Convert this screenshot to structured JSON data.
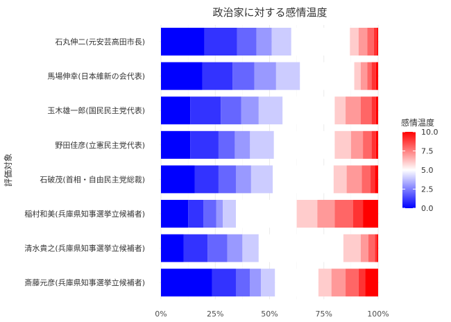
{
  "chart_data": {
    "type": "bar",
    "subtype": "stacked-horizontal-percent",
    "title": "政治家に対する感情温度",
    "xlabel": "",
    "ylabel": "評価対象",
    "xlim": [
      0,
      100
    ],
    "x_ticks": [
      "0%",
      "25%",
      "50%",
      "75%",
      "100%"
    ],
    "x_tick_values": [
      0,
      25,
      50,
      75,
      100
    ],
    "grid": true,
    "legend": {
      "title": "感情温度",
      "position": "right",
      "ticks": [
        "10.0",
        "7.5",
        "5.0",
        "2.5",
        "0.0"
      ],
      "tick_values": [
        10,
        7.5,
        5,
        2.5,
        0
      ],
      "colors": {
        "low": "#0000ff",
        "mid": "#ffffff",
        "high": "#ff0000"
      }
    },
    "scale": [
      0,
      1,
      2,
      3,
      4,
      5,
      6,
      7,
      8,
      9,
      10
    ],
    "categories": [
      "石丸伸二(元安芸高田市長)",
      "馬場伸幸(日本維新の会代表)",
      "玉木雄一郎(国民民主党代表)",
      "野田佳彦(立憲民主党代表)",
      "石破茂(首相・自由民主党総裁)",
      "稲村和美(兵庫県知事選挙立候補者)",
      "清水貴之(兵庫県知事選挙立候補者)",
      "斎藤元彦(兵庫県知事選挙立候補者)"
    ],
    "series_by_category": [
      [
        20,
        15,
        9,
        7,
        9,
        27,
        4,
        4,
        3,
        1.5,
        0.5
      ],
      [
        19,
        14,
        10,
        10,
        11,
        25,
        3,
        3,
        2,
        2,
        1
      ],
      [
        13.5,
        14,
        9.5,
        8,
        11,
        24,
        5,
        7,
        5,
        2,
        1
      ],
      [
        13.5,
        13,
        7.5,
        7,
        11,
        28,
        7.5,
        5.5,
        4,
        2,
        1
      ],
      [
        15.5,
        11,
        8,
        7,
        10,
        28,
        6,
        7,
        4,
        2,
        1.5
      ],
      [
        12.5,
        7,
        6,
        3,
        6,
        28,
        9.5,
        8,
        8.5,
        4.5,
        7
      ],
      [
        10.5,
        11,
        9,
        7,
        7.5,
        39,
        8,
        3.5,
        3,
        1,
        0.5
      ],
      [
        23.5,
        11,
        6.5,
        5,
        6.5,
        20,
        6,
        6.5,
        6,
        3,
        6
      ]
    ]
  }
}
